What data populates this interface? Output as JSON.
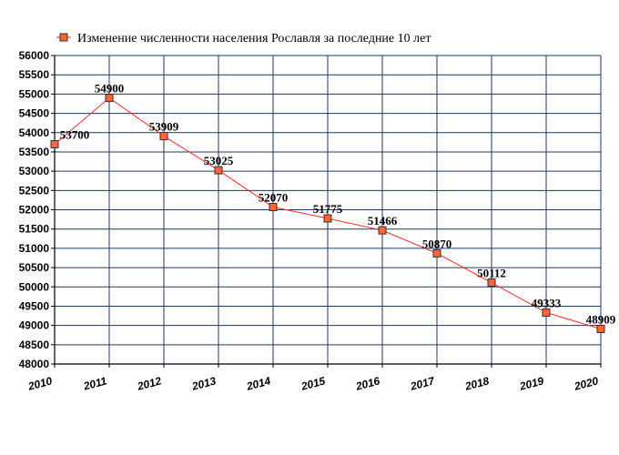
{
  "chart_data": {
    "type": "line",
    "title": "",
    "xlabel": "",
    "ylabel": "",
    "ylim": [
      48000,
      56000
    ],
    "ytick_step": 500,
    "grid": true,
    "legend_position": "top",
    "categories": [
      "2010",
      "2011",
      "2012",
      "2013",
      "2014",
      "2015",
      "2016",
      "2017",
      "2018",
      "2019",
      "2020"
    ],
    "series": [
      {
        "name": "Изменение численности населения Рославля за последние 10 лет",
        "values": [
          53700,
          54900,
          53909,
          53025,
          52070,
          51775,
          51466,
          50870,
          50112,
          49333,
          48909
        ]
      }
    ]
  },
  "colors": {
    "line": "#ff2a2a",
    "marker_fill": "#ff6633",
    "marker_stroke": "#333333",
    "grid": "#1f3a5f",
    "axis": "#000000"
  }
}
